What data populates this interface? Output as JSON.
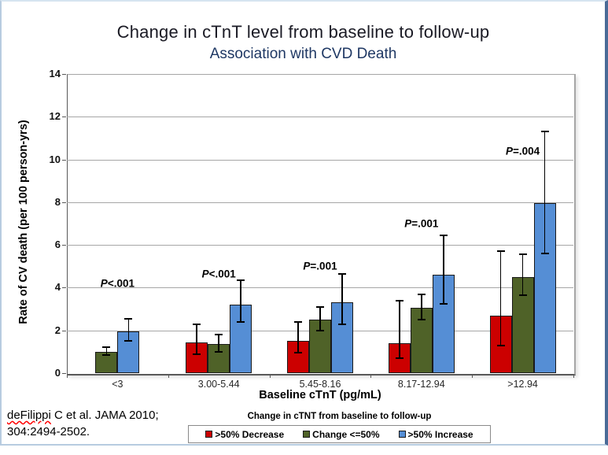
{
  "slide": {
    "title": "Change in cTnT level from baseline to follow-up",
    "subtitle": "Association with CVD Death",
    "citation": {
      "author": "deFilippi",
      "line1_rest": " C et al.  JAMA 2010;",
      "line2": "304:2494-2502."
    }
  },
  "chart_data": {
    "type": "bar",
    "title": "Change in cTnT level from baseline to follow-up",
    "subtitle": "Association with CVD Death",
    "xlabel": "Baseline cTnT (pg/mL)",
    "ylabel": "Rate of CV death (per 100 person-yrs)",
    "ylim": [
      0,
      14
    ],
    "yticks": [
      0,
      2,
      4,
      6,
      8,
      10,
      12,
      14
    ],
    "grid": true,
    "categories": [
      "<3",
      "3.00-5.44",
      "5.45-8.16",
      "8.17-12.94",
      ">12.94"
    ],
    "series": [
      {
        "name": ">50% Decrease",
        "color": "#CC0000",
        "values": [
          null,
          1.45,
          1.5,
          1.4,
          2.7
        ],
        "error_low": [
          null,
          0.9,
          0.95,
          0.7,
          1.3
        ],
        "error_high": [
          null,
          2.3,
          2.4,
          3.4,
          5.7
        ]
      },
      {
        "name": "Change <=50%",
        "color": "#4F6228",
        "values": [
          1.0,
          1.35,
          2.5,
          3.05,
          4.5
        ],
        "error_low": [
          0.85,
          1.0,
          2.0,
          2.5,
          3.65
        ],
        "error_high": [
          1.2,
          1.8,
          3.1,
          3.7,
          5.55
        ]
      },
      {
        "name": ">50% Increase",
        "color": "#558ED5",
        "values": [
          1.95,
          3.2,
          3.3,
          4.6,
          7.95
        ],
        "error_low": [
          1.5,
          2.4,
          2.3,
          3.25,
          5.6
        ],
        "error_high": [
          2.55,
          4.35,
          4.65,
          6.45,
          11.3
        ]
      }
    ],
    "p_annotations": [
      {
        "label": "P<.001",
        "y": 4.2
      },
      {
        "label": "P<.001",
        "y": 4.65
      },
      {
        "label": "P=.001",
        "y": 5.0
      },
      {
        "label": "P=.001",
        "y": 7.0
      },
      {
        "label": "P=.004",
        "y": 10.4
      }
    ],
    "legend": {
      "title": "Change in cTNT from baseline to follow-up",
      "position": "bottom"
    }
  }
}
